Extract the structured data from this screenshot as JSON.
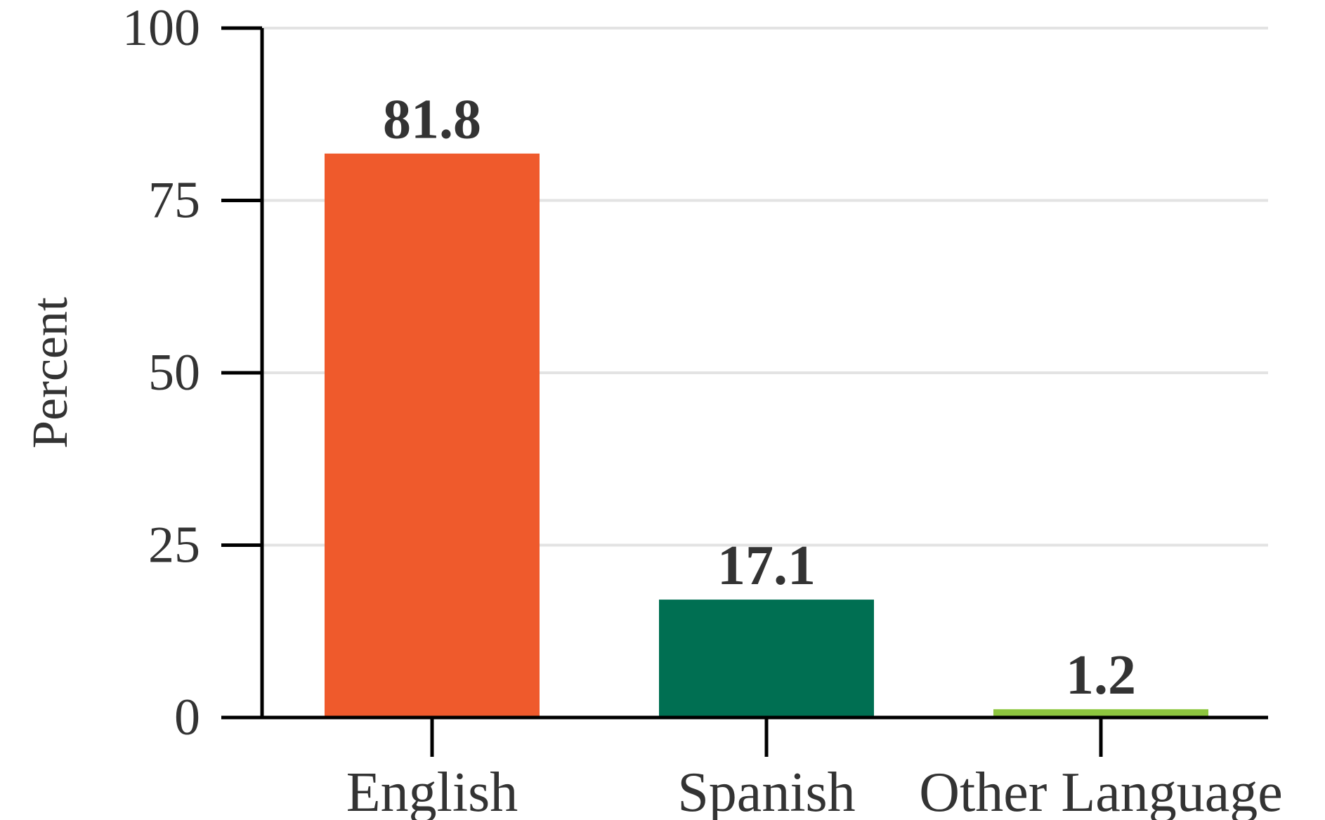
{
  "chart_data": {
    "type": "bar",
    "title": "",
    "xlabel": "",
    "ylabel": "Percent",
    "categories": [
      "English",
      "Spanish",
      "Other Language"
    ],
    "values": [
      81.8,
      17.1,
      1.2
    ],
    "value_labels": [
      "81.8",
      "17.1",
      "1.2"
    ],
    "colors": [
      "#ef5a2c",
      "#006f52",
      "#8dc63f"
    ],
    "ylim": [
      0,
      100
    ],
    "yticks": [
      0,
      25,
      50,
      75,
      100
    ],
    "ytick_labels": [
      "0",
      "25",
      "50",
      "75",
      "100"
    ],
    "grid": true,
    "legend": "none"
  }
}
